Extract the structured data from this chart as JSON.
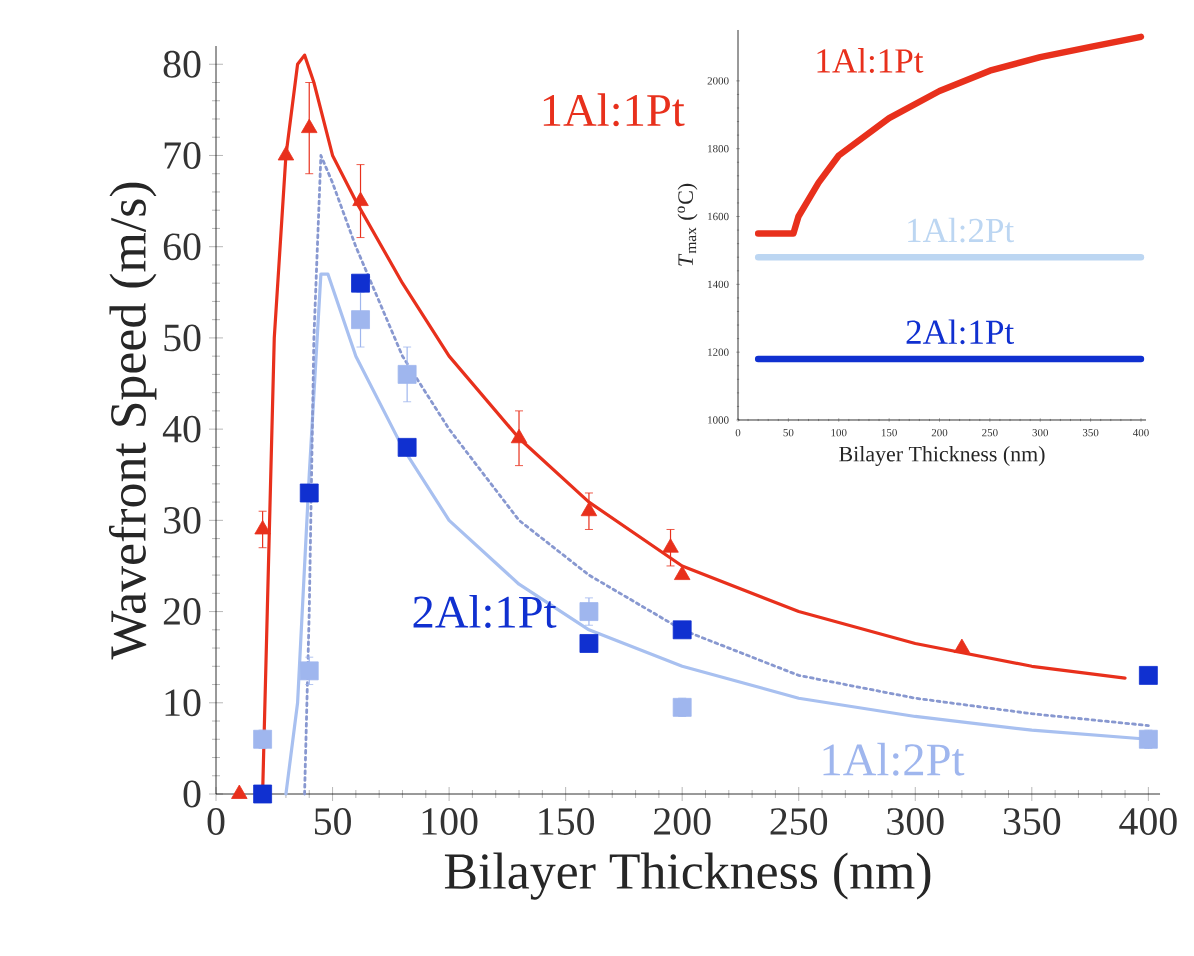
{
  "chart_data": [
    {
      "type": "scatter",
      "xlabel": "Bilayer Thickness (nm)",
      "ylabel": "Wavefront Speed (m/s)",
      "xlim": [
        0,
        405
      ],
      "ylim": [
        0,
        82
      ],
      "xticks": [
        0,
        50,
        100,
        150,
        200,
        250,
        300,
        350,
        400
      ],
      "yticks": [
        0,
        10,
        20,
        30,
        40,
        50,
        60,
        70,
        80
      ],
      "series": [
        {
          "name": "1Al:1Pt",
          "type": "scatter",
          "marker": "triangle",
          "color": "#e8301c",
          "x": [
            10,
            20,
            30,
            40,
            62,
            130,
            160,
            195,
            200,
            320
          ],
          "values": [
            0,
            29,
            70,
            73,
            65,
            39,
            31,
            27,
            24,
            16
          ],
          "errors": [
            null,
            2,
            null,
            5,
            4,
            3,
            2,
            2,
            null,
            null
          ]
        },
        {
          "name": "2Al:1Pt",
          "type": "scatter",
          "marker": "square",
          "color": "#1030d0",
          "x": [
            20,
            40,
            62,
            82,
            160,
            200,
            400
          ],
          "values": [
            0,
            33,
            56,
            38,
            16.5,
            18,
            13
          ]
        },
        {
          "name": "1Al:2Pt",
          "type": "scatter",
          "marker": "square",
          "color": "#9fb6ee",
          "x": [
            20,
            40,
            62,
            82,
            160,
            200,
            400
          ],
          "values": [
            6,
            13.5,
            52,
            46,
            20,
            9.5,
            6
          ],
          "errors": [
            1,
            1.5,
            3,
            3,
            1.5,
            1,
            1
          ]
        },
        {
          "type": "line",
          "line_style": "solid",
          "color": "#e8301c",
          "x": [
            20,
            22,
            25,
            30,
            35,
            38,
            42,
            50,
            60,
            80,
            100,
            130,
            160,
            200,
            250,
            300,
            350,
            390
          ],
          "values": [
            0,
            20,
            50,
            70,
            80,
            81,
            78,
            70,
            65,
            56,
            48,
            39,
            32,
            25,
            20,
            16.5,
            14,
            12.7
          ]
        },
        {
          "type": "line",
          "line_style": "solid",
          "color": "#a8c0f0",
          "x": [
            30,
            35,
            40,
            45,
            48,
            60,
            80,
            100,
            130,
            160,
            200,
            250,
            300,
            350,
            400
          ],
          "values": [
            0,
            10,
            35,
            57,
            57,
            48,
            38,
            30,
            23,
            18,
            14,
            10.5,
            8.5,
            7,
            6
          ]
        },
        {
          "type": "line",
          "line_style": "dotted",
          "color": "#8898d0",
          "x": [
            38,
            40,
            42,
            45,
            50,
            60,
            80,
            100,
            130,
            160,
            200,
            250,
            300,
            350,
            400
          ],
          "values": [
            0,
            20,
            50,
            70,
            67,
            60,
            48,
            40,
            30,
            24,
            18,
            13,
            10.5,
            8.8,
            7.5
          ]
        }
      ]
    },
    {
      "type": "line",
      "xlabel": "Bilayer Thickness (nm)",
      "ylabel": "*T*$_{max}$ ($^{o}$C)",
      "xlim": [
        0,
        405
      ],
      "ylim": [
        1000,
        2150
      ],
      "xticks": [
        0,
        50,
        100,
        150,
        200,
        250,
        300,
        350,
        400
      ],
      "yticks": [
        1000,
        1200,
        1400,
        1600,
        1800,
        2000
      ],
      "series": [
        {
          "name": "1Al:1Pt",
          "color": "#e8301c",
          "x": [
            20,
            40,
            55,
            60,
            80,
            100,
            150,
            200,
            250,
            300,
            350,
            400
          ],
          "values": [
            1550,
            1550,
            1550,
            1600,
            1700,
            1780,
            1890,
            1970,
            2030,
            2070,
            2100,
            2130
          ]
        },
        {
          "name": "1Al:2Pt",
          "color": "#bcd6f2",
          "x": [
            20,
            400
          ],
          "values": [
            1480,
            1480
          ]
        },
        {
          "name": "2Al:1Pt",
          "color": "#1030d0",
          "x": [
            20,
            400
          ],
          "values": [
            1180,
            1180
          ]
        }
      ]
    }
  ]
}
